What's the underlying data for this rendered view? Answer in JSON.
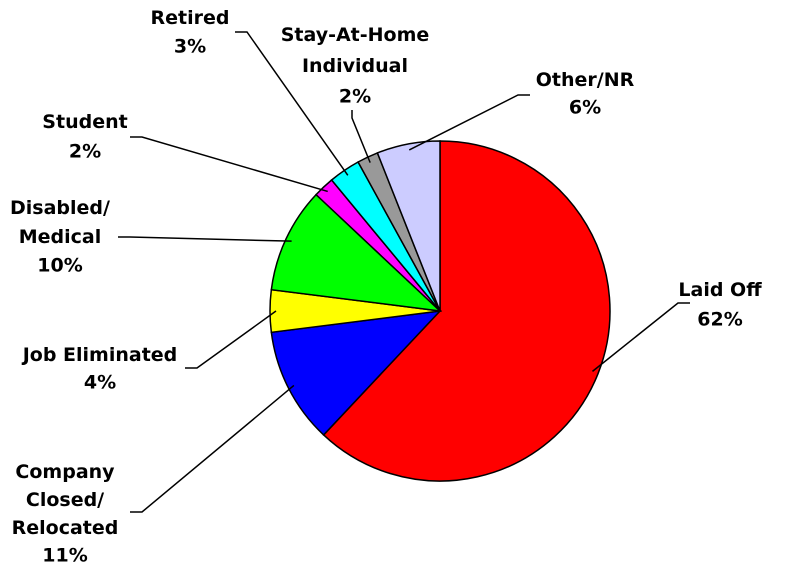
{
  "chart_data": {
    "type": "pie",
    "categories": [
      "Laid Off",
      "Company\nClosed/\nRelocated",
      "Job Eliminated",
      "Disabled/\nMedical",
      "Student",
      "Retired",
      "Stay-At-Home\nIndividual",
      "Other/NR"
    ],
    "values": [
      62,
      11,
      4,
      10,
      2,
      3,
      2,
      6
    ],
    "value_labels": [
      "62%",
      "11%",
      "4%",
      "10%",
      "2%",
      "3%",
      "2%",
      "6%"
    ],
    "colors": [
      "#ff0000",
      "#0000ff",
      "#ffff00",
      "#00ff00",
      "#ff00ff",
      "#00ffff",
      "#999999",
      "#ccccff"
    ]
  }
}
